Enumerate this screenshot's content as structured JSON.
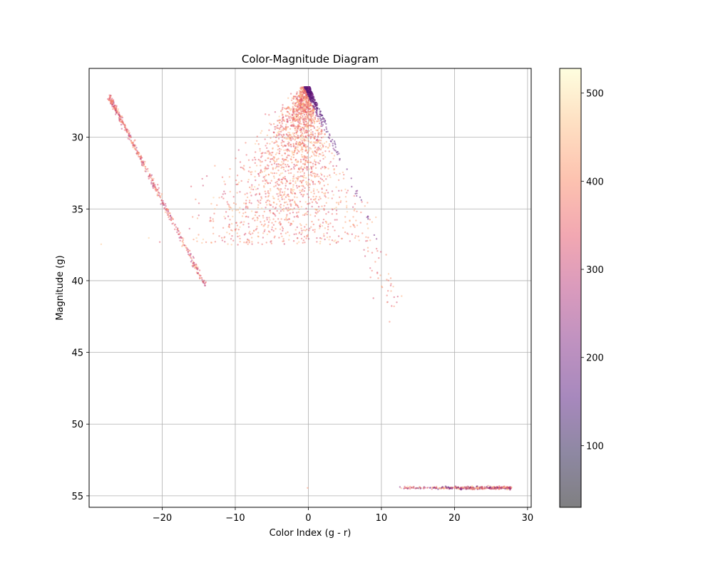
{
  "chart_data": {
    "type": "scatter",
    "title": "Color-Magnitude Diagram",
    "xlabel": "Color Index (g - r)",
    "ylabel": "Magnitude (g)",
    "xlim": [
      -30,
      30.5
    ],
    "ylim": [
      55.8,
      25.2
    ],
    "y_inverted": true,
    "grid": true,
    "xticks": [
      -20,
      -10,
      0,
      10,
      20,
      30
    ],
    "xtick_labels": [
      "−20",
      "−10",
      "0",
      "10",
      "20",
      "30"
    ],
    "yticks": [
      30,
      35,
      40,
      45,
      50,
      55
    ],
    "ytick_labels": [
      "30",
      "35",
      "40",
      "45",
      "50",
      "55"
    ],
    "colormap": "magma",
    "alpha": 0.5,
    "colorbar": {
      "min": 30,
      "max": 528,
      "ticks": [
        100,
        200,
        300,
        400,
        500
      ],
      "tick_labels": [
        "100",
        "200",
        "300",
        "400",
        "500"
      ]
    },
    "groups": [
      {
        "description_region": "main cloud",
        "apex": [
          0.2,
          26.5
        ],
        "bounds": {
          "x": [
            -11.5,
            13.2
          ],
          "y": [
            26.5,
            42.1
          ]
        }
      },
      {
        "description_region": "left diagonal streak",
        "from": [
          -27.2,
          27.2
        ],
        "to": [
          -14,
          40.5
        ]
      },
      {
        "description_region": "bottom horizontal streak",
        "x": [
          11.9,
          27.8
        ],
        "y": 54.45
      },
      {
        "description_region": "isolated point",
        "x": [
          -0.1
        ],
        "y": 54.45
      }
    ]
  }
}
